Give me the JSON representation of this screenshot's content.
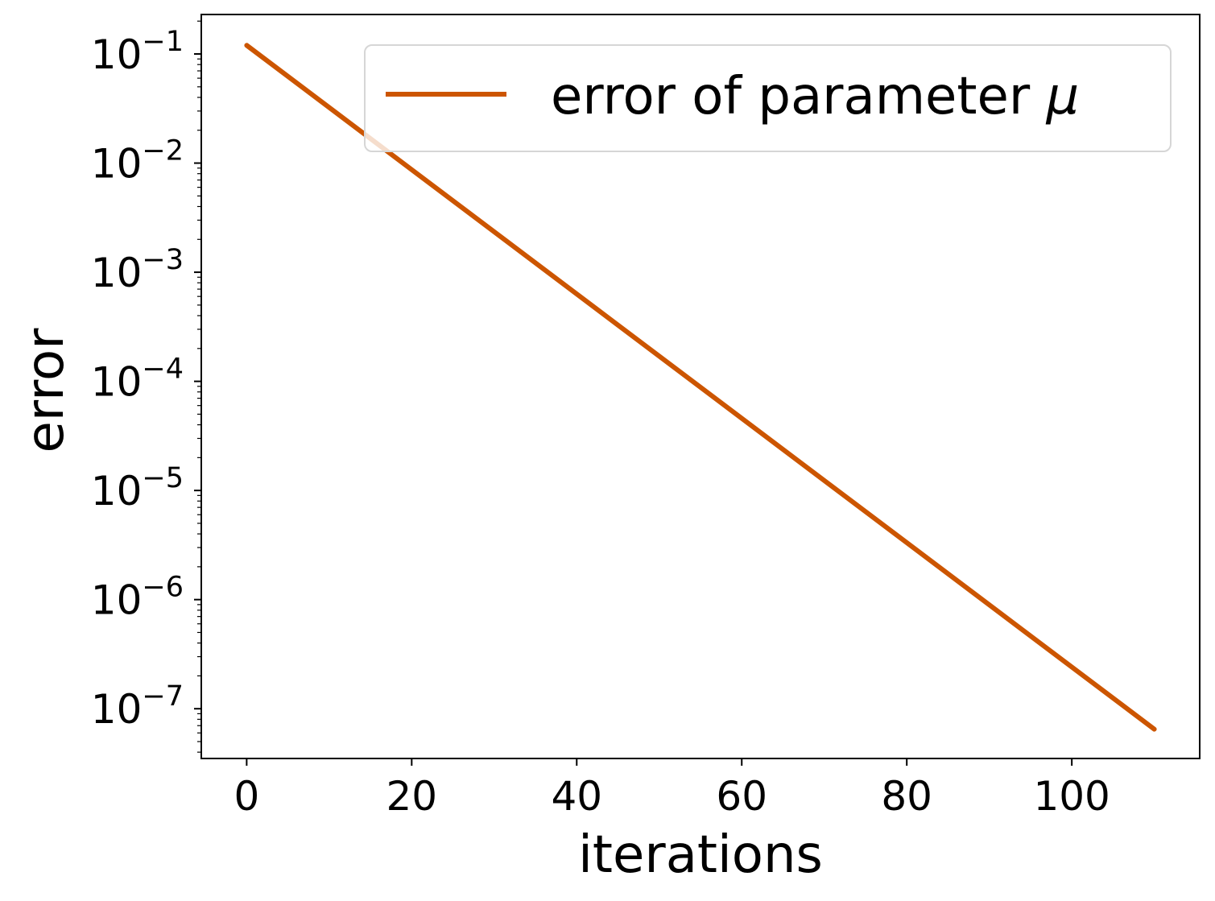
{
  "chart_data": {
    "type": "line",
    "title": "",
    "xlabel": "iterations",
    "ylabel": "error",
    "yscale": "log",
    "xlim": [
      -5.5,
      115.5
    ],
    "ylim": [
      3.5e-08,
      0.23
    ],
    "x_ticks": [
      0,
      20,
      40,
      60,
      80,
      100
    ],
    "x_tick_labels": [
      "0",
      "20",
      "40",
      "60",
      "80",
      "100"
    ],
    "y_ticks": [
      0.1,
      0.01,
      0.001,
      0.0001,
      1e-05,
      1e-06,
      1e-07
    ],
    "y_tick_labels": [
      {
        "base": "10",
        "exp": "−1"
      },
      {
        "base": "10",
        "exp": "−2"
      },
      {
        "base": "10",
        "exp": "−3"
      },
      {
        "base": "10",
        "exp": "−4"
      },
      {
        "base": "10",
        "exp": "−5"
      },
      {
        "base": "10",
        "exp": "−6"
      },
      {
        "base": "10",
        "exp": "−7"
      }
    ],
    "grid": false,
    "legend_position": "top-right",
    "series": [
      {
        "name": "error of parameter μ",
        "name_parts": {
          "text": "error of parameter ",
          "symbol": "μ"
        },
        "color": "#cc5500",
        "x": [
          0,
          110
        ],
        "y": [
          0.12,
          6.5e-08
        ]
      }
    ]
  }
}
